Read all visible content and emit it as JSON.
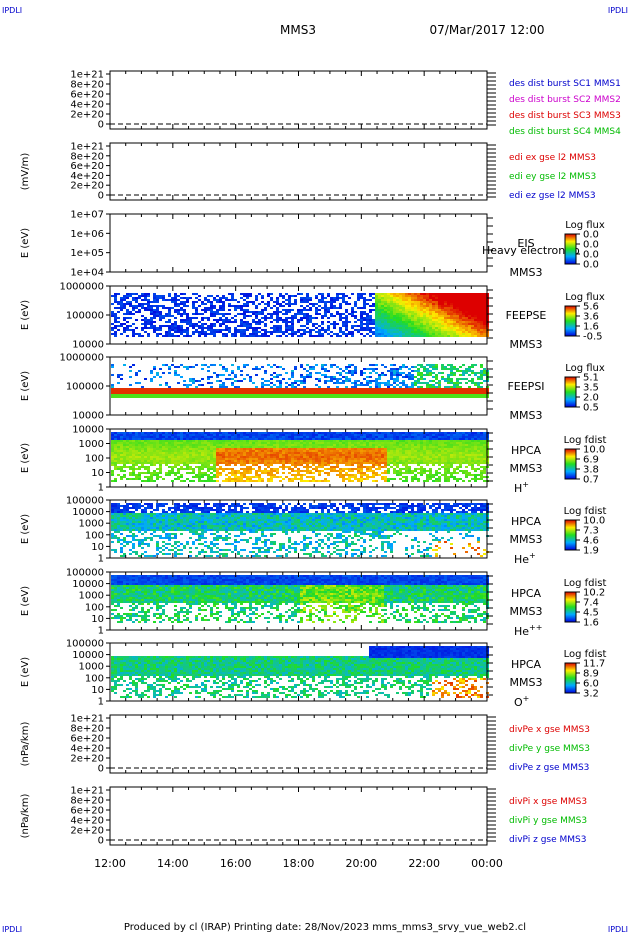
{
  "corner_marks": {
    "top_left": "IPDLI",
    "top_right": "IPDLI",
    "bottom_left": "IPDLI",
    "bottom_right": "IPDLI"
  },
  "header": {
    "spacecraft": "MMS3",
    "datetime": "07/Mar/2017 12:00"
  },
  "footer": {
    "text": "Produced by cl (IRAP)   Printing date: 28/Nov/2023   mms_mms3_srvy_vue_web2.cl"
  },
  "colors": {
    "blue": "#0000cc",
    "magenta": "#cc00cc",
    "red": "#dd0000",
    "green": "#00bb00",
    "axis": "#000000"
  },
  "chart_data": [
    {
      "type": "line",
      "ylabel": "",
      "yticks": [
        "1e+21",
        "8e+20",
        "6e+20",
        "4e+20",
        "2e+20",
        "0"
      ],
      "series": [
        {
          "name": "des dist burst SC1 MMS1",
          "color": "#0000cc",
          "values": []
        },
        {
          "name": "des dist burst SC2 MMS2",
          "color": "#cc00cc",
          "values": []
        },
        {
          "name": "des dist burst SC3 MMS3",
          "color": "#dd0000",
          "values": []
        },
        {
          "name": "des dist burst SC4 MMS4",
          "color": "#00bb00",
          "values": []
        }
      ]
    },
    {
      "type": "line",
      "ylabel": "(mV/m)",
      "yticks": [
        "1e+21",
        "8e+20",
        "6e+20",
        "4e+20",
        "2e+20",
        "0"
      ],
      "series": [
        {
          "name": "edi ex gse l2 MMS3",
          "color": "#dd0000",
          "values": []
        },
        {
          "name": "edi ey gse l2 MMS3",
          "color": "#00bb00",
          "values": []
        },
        {
          "name": "edi ez gse l2 MMS3",
          "color": "#0000cc",
          "values": []
        }
      ]
    },
    {
      "type": "heatmap",
      "ylabel": "E (eV)",
      "yticks": [
        "1e+07",
        "1e+06",
        "1e+05",
        "1e+04"
      ],
      "labels": [
        "EIS",
        "MMS3"
      ],
      "overlay_text": "Heavy electron to",
      "colorbar": {
        "title": "Log flux",
        "ticks": [
          "0.0",
          "0.0",
          "0.0",
          "0.0"
        ]
      }
    },
    {
      "type": "heatmap",
      "ylabel": "E (eV)",
      "yticks": [
        "1000000",
        "100000",
        "10000"
      ],
      "labels": [
        "FEEPSE",
        "MMS3"
      ],
      "colorbar": {
        "title": "Log flux",
        "ticks": [
          "5.6",
          "3.6",
          "1.6",
          "-0.5"
        ]
      }
    },
    {
      "type": "heatmap",
      "ylabel": "E (eV)",
      "yticks": [
        "1000000",
        "100000",
        "10000"
      ],
      "labels": [
        "FEEPSI",
        "MMS3"
      ],
      "colorbar": {
        "title": "Log flux",
        "ticks": [
          "5.1",
          "3.5",
          "2.0",
          "0.5"
        ]
      }
    },
    {
      "type": "heatmap",
      "ylabel": "E (eV)",
      "yticks": [
        "10000",
        "1000",
        "100",
        "10",
        "1"
      ],
      "labels": [
        "HPCA",
        "MMS3"
      ],
      "species": "H",
      "species_sup": "+",
      "colorbar": {
        "title": "Log fdist",
        "ticks": [
          "10.0",
          "6.9",
          "3.8",
          "0.7"
        ]
      }
    },
    {
      "type": "heatmap",
      "ylabel": "E (eV)",
      "yticks": [
        "100000",
        "10000",
        "1000",
        "100",
        "10",
        "1"
      ],
      "labels": [
        "HPCA",
        "MMS3"
      ],
      "species": "He",
      "species_sup": "+",
      "colorbar": {
        "title": "Log fdist",
        "ticks": [
          "10.0",
          "7.3",
          "4.6",
          "1.9"
        ]
      }
    },
    {
      "type": "heatmap",
      "ylabel": "E (eV)",
      "yticks": [
        "100000",
        "10000",
        "1000",
        "100",
        "10",
        "1"
      ],
      "labels": [
        "HPCA",
        "MMS3"
      ],
      "species": "He",
      "species_sup": "++",
      "colorbar": {
        "title": "Log fdist",
        "ticks": [
          "10.2",
          "7.4",
          "4.5",
          "1.6"
        ]
      }
    },
    {
      "type": "heatmap",
      "ylabel": "E (eV)",
      "yticks": [
        "100000",
        "10000",
        "1000",
        "100",
        "10",
        "1"
      ],
      "labels": [
        "HPCA",
        "MMS3"
      ],
      "species": "O",
      "species_sup": "+",
      "colorbar": {
        "title": "Log fdist",
        "ticks": [
          "11.7",
          "8.9",
          "6.0",
          "3.2"
        ]
      }
    },
    {
      "type": "line",
      "ylabel": "(nPa/km)",
      "yticks": [
        "1e+21",
        "8e+20",
        "6e+20",
        "4e+20",
        "2e+20",
        "0"
      ],
      "series": [
        {
          "name": "divPe x gse MMS3",
          "color": "#dd0000",
          "values": []
        },
        {
          "name": "divPe y gse MMS3",
          "color": "#00bb00",
          "values": []
        },
        {
          "name": "divPe z gse MMS3",
          "color": "#0000cc",
          "values": []
        }
      ]
    },
    {
      "type": "line",
      "ylabel": "(nPa/km)",
      "yticks": [
        "1e+21",
        "8e+20",
        "6e+20",
        "4e+20",
        "2e+20",
        "0"
      ],
      "series": [
        {
          "name": "divPi x gse MMS3",
          "color": "#dd0000",
          "values": []
        },
        {
          "name": "divPi y gse MMS3",
          "color": "#00bb00",
          "values": []
        },
        {
          "name": "divPi z gse MMS3",
          "color": "#0000cc",
          "values": []
        }
      ]
    }
  ],
  "xaxis": {
    "ticks": [
      "12:00",
      "14:00",
      "16:00",
      "18:00",
      "20:00",
      "22:00",
      "00:00"
    ]
  }
}
